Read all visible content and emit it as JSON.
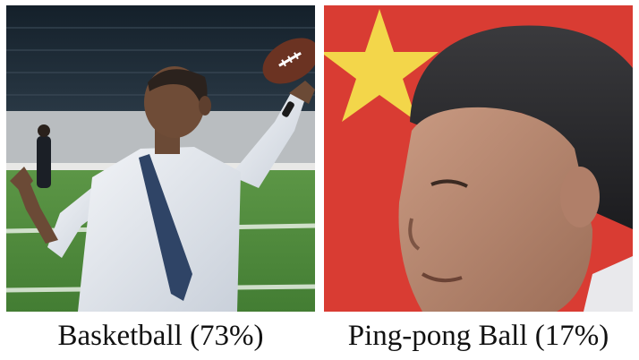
{
  "panels": [
    {
      "caption": "Basketball (73%)"
    },
    {
      "caption": "Ping-pong Ball (17%)"
    }
  ],
  "colors": {
    "background": "#ffffff",
    "caption_text": "#111111",
    "flag_red": "#d93c33",
    "flag_star": "#f3d64a",
    "turf_green": "#4f8a3c",
    "stadium_dark": "#1f2a35"
  }
}
